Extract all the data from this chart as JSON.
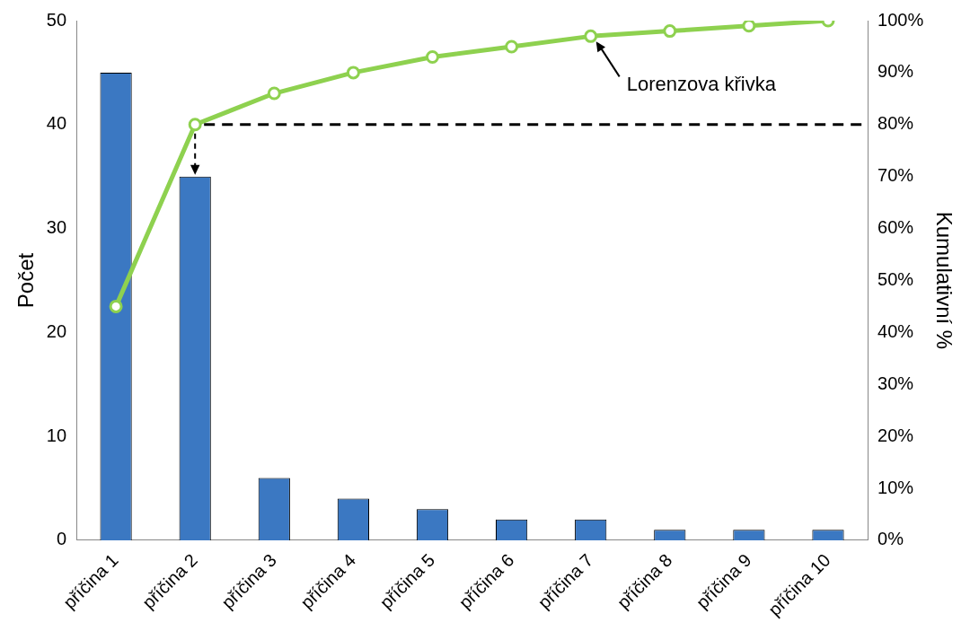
{
  "chart_data": {
    "type": "bar",
    "categories": [
      "příčina 1",
      "příčina 2",
      "příčina 3",
      "příčina 4",
      "příčina 5",
      "příčina 6",
      "příčina 7",
      "příčina 8",
      "příčina 9",
      "příčina 10"
    ],
    "series": [
      {
        "color": "#3b78c2",
        "values": [
          45,
          35,
          6,
          4,
          3,
          2,
          2,
          1,
          1,
          1
        ]
      },
      {
        "type": "line",
        "axis": "y2",
        "color": "#8ed14f",
        "values": [
          45,
          80,
          86,
          90,
          93,
          95,
          97,
          98,
          99,
          100
        ]
      }
    ],
    "ylabel": "Počet",
    "y2label": "Kumulativní %",
    "ylim": [
      0,
      50
    ],
    "yticks": [
      0,
      10,
      20,
      30,
      40,
      50
    ],
    "y2lim": [
      0,
      100
    ],
    "y2ticks": [
      {
        "value": 0,
        "label": "0%"
      },
      {
        "value": 10,
        "label": "10%"
      },
      {
        "value": 20,
        "label": "20%"
      },
      {
        "value": 30,
        "label": "30%"
      },
      {
        "value": 40,
        "label": "40%"
      },
      {
        "value": 50,
        "label": "50%"
      },
      {
        "value": 60,
        "label": "60%"
      },
      {
        "value": 70,
        "label": "70%"
      },
      {
        "value": 80,
        "label": "80%"
      },
      {
        "value": 90,
        "label": "90%"
      },
      {
        "value": 100,
        "label": "100%"
      }
    ],
    "ref_lines": [
      {
        "axis": "y2",
        "value": 80,
        "line_style": "dashed",
        "color": "#000000"
      }
    ],
    "annotations": [
      {
        "text": "Lorenzova křivka",
        "x": "příčina 7",
        "y": 48.5
      }
    ],
    "marker": "circle",
    "grid": false,
    "legend": false
  }
}
